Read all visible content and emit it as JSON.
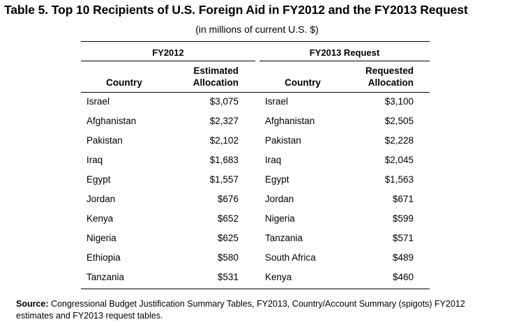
{
  "title": "Table 5. Top 10 Recipients of U.S. Foreign Aid in FY2012 and the FY2013 Request",
  "subtitle": "(in millions of current U.S. $)",
  "groups": {
    "left": "FY2012",
    "right": "FY2013 Request"
  },
  "headers": {
    "left_country": "Country",
    "left_amount_line1": "Estimated",
    "left_amount_line2": "Allocation",
    "right_country": "Country",
    "right_amount_line1": "Requested",
    "right_amount_line2": "Allocation"
  },
  "rows": [
    {
      "fy12_country": "Israel",
      "fy12_amount": "$3,075",
      "fy13_country": "Israel",
      "fy13_amount": "$3,100"
    },
    {
      "fy12_country": "Afghanistan",
      "fy12_amount": "$2,327",
      "fy13_country": "Afghanistan",
      "fy13_amount": "$2,505"
    },
    {
      "fy12_country": "Pakistan",
      "fy12_amount": "$2,102",
      "fy13_country": "Pakistan",
      "fy13_amount": "$2,228"
    },
    {
      "fy12_country": "Iraq",
      "fy12_amount": "$1,683",
      "fy13_country": "Iraq",
      "fy13_amount": "$2,045"
    },
    {
      "fy12_country": "Egypt",
      "fy12_amount": "$1,557",
      "fy13_country": "Egypt",
      "fy13_amount": "$1,563"
    },
    {
      "fy12_country": "Jordan",
      "fy12_amount": "$676",
      "fy13_country": "Jordan",
      "fy13_amount": "$671"
    },
    {
      "fy12_country": "Kenya",
      "fy12_amount": "$652",
      "fy13_country": "Nigeria",
      "fy13_amount": "$599"
    },
    {
      "fy12_country": "Nigeria",
      "fy12_amount": "$625",
      "fy13_country": "Tanzania",
      "fy13_amount": "$571"
    },
    {
      "fy12_country": "Ethiopia",
      "fy12_amount": "$580",
      "fy13_country": "South Africa",
      "fy13_amount": "$489"
    },
    {
      "fy12_country": "Tanzania",
      "fy12_amount": "$531",
      "fy13_country": "Kenya",
      "fy13_amount": "$460"
    }
  ],
  "source": {
    "label": "Source:",
    "text": "Congressional Budget Justification Summary Tables, FY2013, Country/Account Summary (spigots) FY2012 estimates and FY2013 request tables."
  }
}
